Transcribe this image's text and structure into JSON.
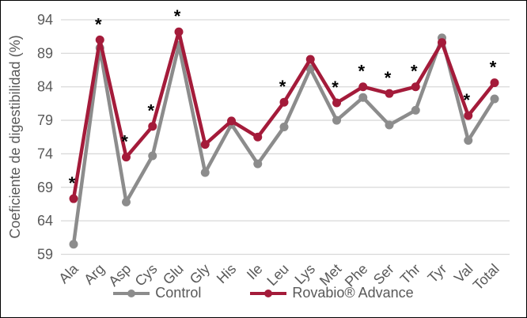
{
  "chart_data": {
    "type": "line",
    "title": "",
    "ylabel": "Coeficiente de digestibilidad (%)",
    "xlabel": "",
    "ylim": [
      59,
      94
    ],
    "yticks": [
      59,
      64,
      69,
      74,
      79,
      84,
      89,
      94
    ],
    "grid": "horizontal",
    "legend_position": "bottom",
    "categories": [
      "Ala",
      "Arg",
      "Asp",
      "Cys",
      "Glu",
      "Gly",
      "His",
      "Ile",
      "Leu",
      "Lys",
      "Met",
      "Phe",
      "Ser",
      "Thr",
      "Tyr",
      "Val",
      "Total"
    ],
    "series": [
      {
        "name": "Control",
        "color": "#8C8C8C",
        "values": [
          60.5,
          89.8,
          66.8,
          73.7,
          90.2,
          71.2,
          78.4,
          72.5,
          78.0,
          86.7,
          79.0,
          82.4,
          78.3,
          80.5,
          91.3,
          76.0,
          82.2
        ]
      },
      {
        "name": "Rovabio® Advance",
        "color": "#A41B3A",
        "values": [
          67.3,
          91.0,
          73.5,
          78.1,
          92.2,
          75.4,
          78.9,
          76.5,
          81.7,
          88.1,
          81.6,
          84.0,
          83.0,
          84.0,
          90.6,
          79.7,
          84.6
        ]
      }
    ],
    "significance_symbol": "*",
    "significant": [
      true,
      true,
      true,
      true,
      true,
      false,
      false,
      false,
      true,
      false,
      true,
      true,
      true,
      true,
      false,
      true,
      true
    ],
    "significant_categories": [
      "Ala",
      "Arg",
      "Asp",
      "Cys",
      "Glu",
      "Leu",
      "Met",
      "Phe",
      "Ser",
      "Thr",
      "Val",
      "Total"
    ],
    "colors": {
      "gridline": "#D9D9D9",
      "axis_text": "#595959",
      "significance": "#000000",
      "background": "#FFFFFF",
      "frame_border": "#000000"
    }
  }
}
